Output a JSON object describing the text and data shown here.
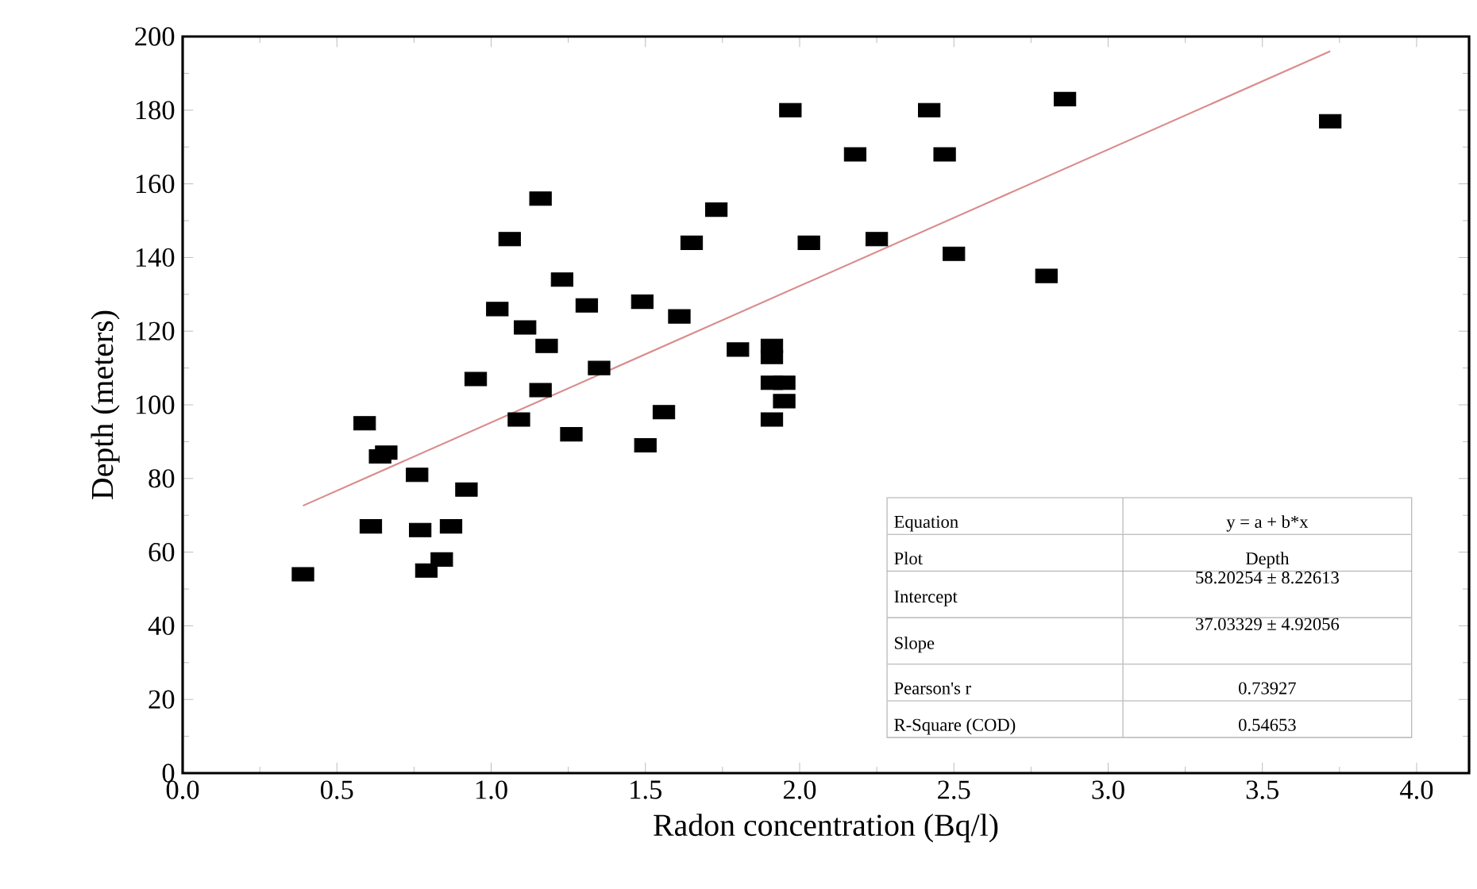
{
  "chart_data": {
    "type": "scatter",
    "xlabel": "Radon concentration (Bq/l)",
    "ylabel": "Depth (meters)",
    "xlim": [
      0,
      4.17
    ],
    "ylim": [
      0,
      200
    ],
    "xticks": [
      {
        "value": 0,
        "label": "0.0"
      },
      {
        "value": 0.5,
        "label": "0.5"
      },
      {
        "value": 1,
        "label": "1.0"
      },
      {
        "value": 1.5,
        "label": "1.5"
      },
      {
        "value": 2,
        "label": "2.0"
      },
      {
        "value": 2.5,
        "label": "2.5"
      },
      {
        "value": 3,
        "label": "3.0"
      },
      {
        "value": 3.5,
        "label": "3.5"
      },
      {
        "value": 4,
        "label": "4.0"
      }
    ],
    "yticks": [
      0,
      20,
      40,
      60,
      80,
      100,
      120,
      140,
      160,
      180,
      200
    ],
    "grid": false,
    "series": [
      {
        "marker": "square",
        "color": "#000000",
        "x": [
          0.39,
          0.59,
          0.61,
          0.64,
          0.66,
          0.76,
          0.77,
          0.79,
          0.84,
          0.87,
          0.92,
          0.95,
          1.02,
          1.06,
          1.09,
          1.11,
          1.16,
          1.16,
          1.18,
          1.23,
          1.26,
          1.31,
          1.35,
          1.49,
          1.5,
          1.56,
          1.61,
          1.65,
          1.73,
          1.8,
          1.91,
          1.91,
          1.91,
          1.95,
          1.95,
          1.91,
          1.97,
          2.03,
          2.18,
          2.42,
          2.47,
          2.25,
          2.5,
          2.8,
          2.86,
          3.72
        ],
        "values": [
          54,
          95,
          67,
          86,
          87,
          81,
          66,
          55,
          58,
          67,
          77,
          107,
          126,
          145,
          96,
          121,
          156,
          104,
          116,
          134,
          92,
          127,
          110,
          128,
          89,
          98,
          124,
          144,
          153,
          115,
          116,
          113,
          106,
          106,
          101,
          96,
          180,
          144,
          168,
          180,
          168,
          145,
          141,
          135,
          183,
          177
        ]
      },
      {
        "type": "line",
        "line_style": "solid",
        "marker": "none",
        "color": "#d98c8c",
        "x": [
          0.39,
          3.72
        ],
        "values": [
          72.6,
          196.0
        ]
      }
    ],
    "annotations": [
      "Equation",
      "y = a + b*x",
      "Plot",
      "Depth",
      "Intercept",
      "58.20254 ± 8.22613",
      "Slope",
      "37.03329 ± 4.92056",
      "Pearson's r",
      "0.73927",
      "R-Square (COD)",
      "0.54653"
    ]
  }
}
